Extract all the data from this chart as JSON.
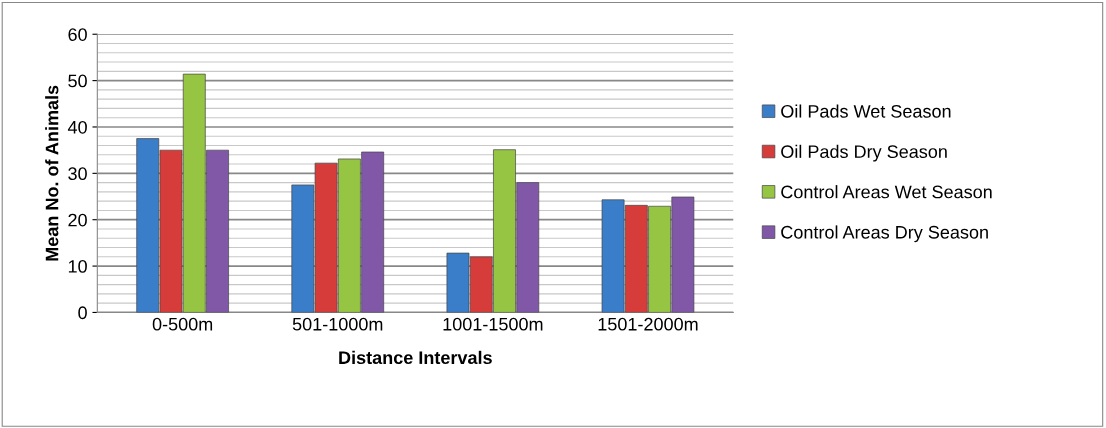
{
  "chart_data": {
    "type": "bar",
    "xlabel": "Distance Intervals",
    "ylabel": "Mean No. of Animals",
    "categories": [
      "0-500m",
      "501-1000m",
      "1001-1500m",
      "1501-2000m"
    ],
    "series": [
      {
        "name": "Oil Pads Wet Season",
        "color": "#3a7dc9",
        "values": [
          37.5,
          27.5,
          12.8,
          24.3
        ]
      },
      {
        "name": "Oil Pads Dry Season",
        "color": "#d63c3a",
        "values": [
          35.0,
          32.2,
          12.0,
          23.1
        ]
      },
      {
        "name": "Control Areas Wet Season",
        "color": "#96c443",
        "values": [
          51.4,
          33.1,
          35.1,
          22.9
        ]
      },
      {
        "name": "Control Areas Dry Season",
        "color": "#8158a8",
        "values": [
          35.0,
          34.6,
          28.0,
          24.9
        ]
      }
    ],
    "ylim": [
      0,
      60
    ],
    "yticks": [
      0,
      10,
      20,
      30,
      40,
      50,
      60
    ],
    "grid": "y",
    "legend": "right"
  }
}
